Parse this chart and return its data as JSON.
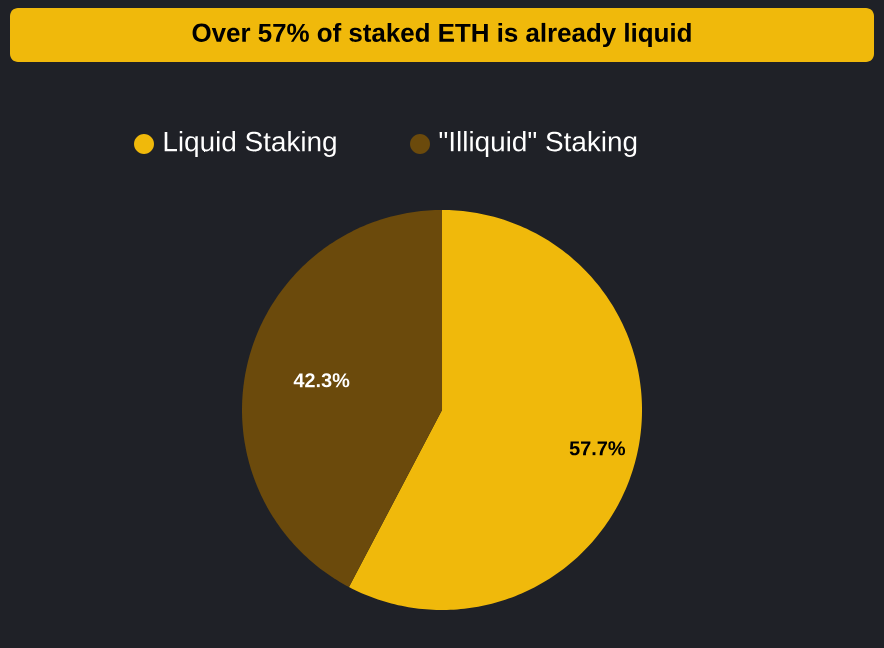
{
  "chart_data": {
    "type": "pie",
    "title": "Over 57% of staked ETH is already liquid",
    "categories": [
      "Liquid Staking",
      "\"Illiquid\" Staking"
    ],
    "values": [
      57.7,
      42.3
    ],
    "colors": [
      "#f0b90b",
      "#6b4a0c"
    ],
    "value_labels": [
      "57.7%",
      "42.3%"
    ],
    "legend": "top"
  }
}
